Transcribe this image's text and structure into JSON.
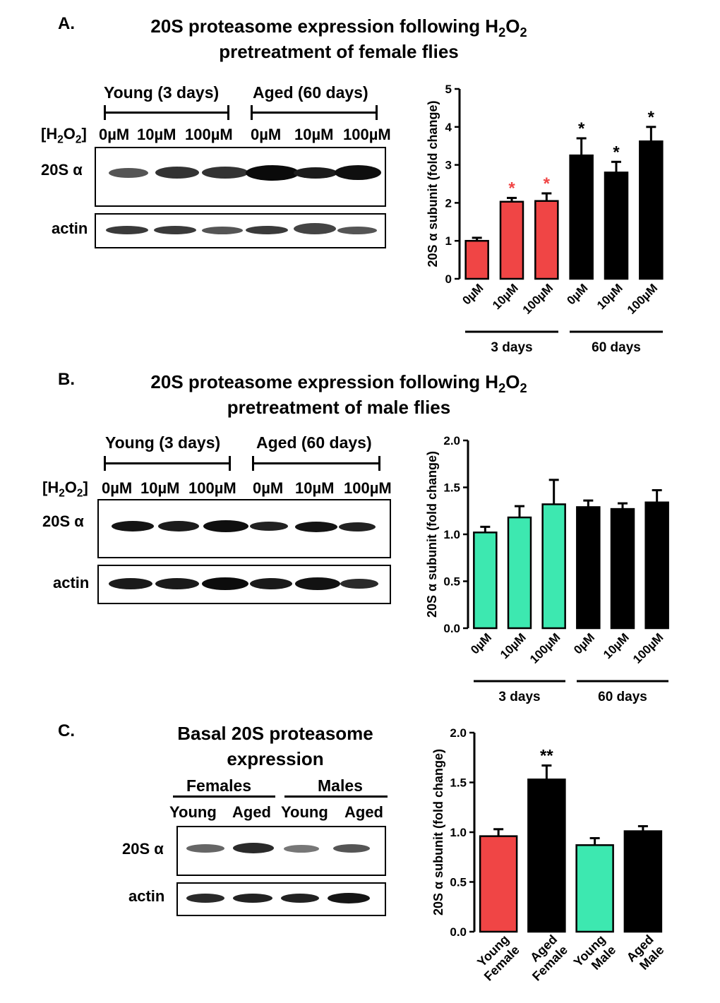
{
  "panels": [
    {
      "letter": "A.",
      "title_line1": "20S proteasome expression following  H",
      "title_sub1": "2",
      "title_mid": "O",
      "title_sub2": "2",
      "title_line2": "pretreatment of female flies",
      "group_young": "Young (3 days)",
      "group_aged": "Aged (60 days)",
      "h2o2_label_pre": "[H",
      "h2o2_label_sub1": "2",
      "h2o2_label_mid": "O",
      "h2o2_label_sub2": "2",
      "h2o2_label_post": "]",
      "lanes": [
        "0µM",
        "10µM",
        "100µM",
        "0µM",
        "10µM",
        "100µM"
      ],
      "blot_label_1": "20S α",
      "blot_label_2": "actin"
    },
    {
      "letter": "B.",
      "title_line1": "20S proteasome expression following  H",
      "title_sub1": "2",
      "title_mid": "O",
      "title_sub2": "2",
      "title_line2": "pretreatment of male flies",
      "group_young": "Young (3 days)",
      "group_aged": "Aged (60 days)",
      "h2o2_label_pre": "[H",
      "h2o2_label_sub1": "2",
      "h2o2_label_mid": "O",
      "h2o2_label_sub2": "2",
      "h2o2_label_post": "]",
      "lanes": [
        "0µM",
        "10µM",
        "100µM",
        "0µM",
        "10µM",
        "100µM"
      ],
      "blot_label_1": "20S α",
      "blot_label_2": "actin"
    },
    {
      "letter": "C.",
      "title_line1": "Basal 20S proteasome",
      "title_line2": "expression",
      "group_females": "Females",
      "group_males": "Males",
      "lanes": [
        "Young",
        "Aged",
        "Young",
        "Aged"
      ],
      "blot_label_1": "20S α",
      "blot_label_2": "actin"
    }
  ],
  "colors": {
    "red": "#f04545",
    "green": "#3de8b0",
    "black": "#000000",
    "star_red": "#f04545"
  },
  "chart_data": [
    {
      "type": "bar",
      "ylabel": "20S α subunit (fold change)",
      "ylim": [
        0,
        5
      ],
      "yticks": [
        "0",
        "1",
        "2",
        "3",
        "4",
        "5"
      ],
      "categories": [
        "0µM",
        "10µM",
        "100µM",
        "0µM",
        "10µM",
        "100µM"
      ],
      "values": [
        1.0,
        2.03,
        2.05,
        3.25,
        2.8,
        3.62
      ],
      "errors": [
        0.08,
        0.1,
        0.2,
        0.45,
        0.28,
        0.38
      ],
      "bar_colors": [
        "red",
        "red",
        "red",
        "black",
        "black",
        "black"
      ],
      "annotations": [
        "",
        "*",
        "*",
        "*",
        "*",
        "*"
      ],
      "annotation_colors": [
        "black",
        "star_red",
        "star_red",
        "black",
        "black",
        "black"
      ],
      "groups": [
        {
          "label": "3 days"
        },
        {
          "label": "60 days"
        }
      ]
    },
    {
      "type": "bar",
      "ylabel": "20S α subunit (fold change)",
      "ylim": [
        0,
        2
      ],
      "yticks": [
        "0.0",
        "0.5",
        "1.0",
        "1.5",
        "2.0"
      ],
      "categories": [
        "0µM",
        "10µM",
        "100µM",
        "0µM",
        "10µM",
        "100µM"
      ],
      "values": [
        1.02,
        1.18,
        1.32,
        1.29,
        1.27,
        1.34
      ],
      "errors": [
        0.06,
        0.12,
        0.26,
        0.07,
        0.06,
        0.13
      ],
      "bar_colors": [
        "green",
        "green",
        "green",
        "black",
        "black",
        "black"
      ],
      "annotations": [
        "",
        "",
        "",
        "",
        "",
        ""
      ],
      "annotation_colors": [
        "black",
        "black",
        "black",
        "black",
        "black",
        "black"
      ],
      "groups": [
        {
          "label": "3 days"
        },
        {
          "label": "60 days"
        }
      ]
    },
    {
      "type": "bar",
      "ylabel": "20S α subunit (fold change)",
      "ylim": [
        0,
        2
      ],
      "yticks": [
        "0.0",
        "0.5",
        "1.0",
        "1.5",
        "2.0"
      ],
      "categories": [
        "Young Female",
        "Aged Female",
        "Young Male",
        "Aged Male"
      ],
      "category_lines": [
        [
          "Young",
          "Female"
        ],
        [
          "Aged",
          "Female"
        ],
        [
          "Young",
          "Male"
        ],
        [
          "Aged",
          "Male"
        ]
      ],
      "values": [
        0.96,
        1.53,
        0.87,
        1.01
      ],
      "errors": [
        0.07,
        0.14,
        0.07,
        0.05
      ],
      "bar_colors": [
        "red",
        "black",
        "green",
        "black"
      ],
      "annotations": [
        "",
        "**",
        "",
        ""
      ],
      "annotation_colors": [
        "black",
        "black",
        "black",
        "black"
      ]
    }
  ]
}
